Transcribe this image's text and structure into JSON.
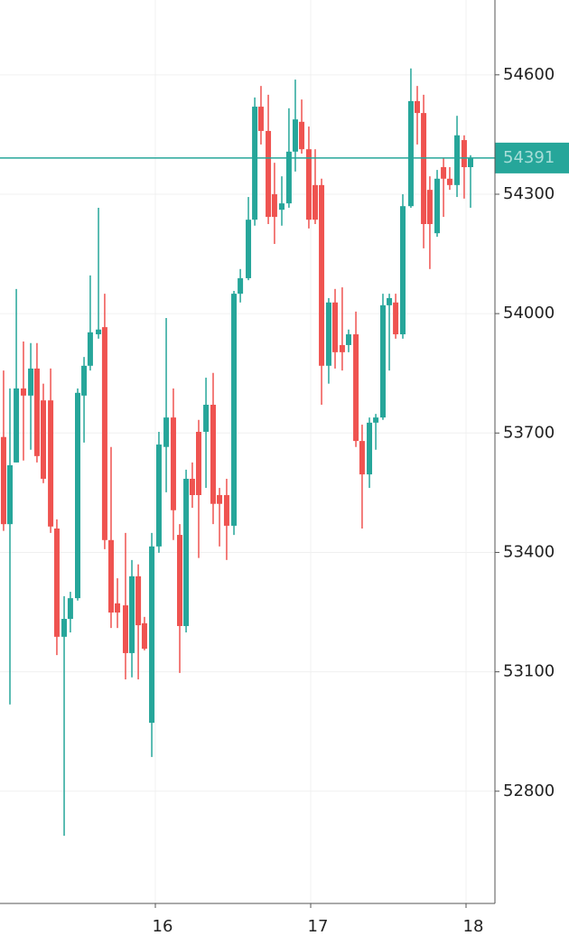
{
  "chart_data": {
    "type": "candlestick",
    "x": [
      15.023,
      15.064,
      15.105,
      15.151,
      15.198,
      15.238,
      15.279,
      15.326,
      15.366,
      15.413,
      15.453,
      15.5,
      15.541,
      15.581,
      15.634,
      15.674,
      15.715,
      15.756,
      15.808,
      15.849,
      15.89,
      15.93,
      15.977,
      16.023,
      16.07,
      16.116,
      16.157,
      16.198,
      16.238,
      16.279,
      16.326,
      16.372,
      16.413,
      16.459,
      16.506,
      16.547,
      16.599,
      16.64,
      16.68,
      16.727,
      16.767,
      16.814,
      16.86,
      16.901,
      16.942,
      16.988,
      17.029,
      17.07,
      17.116,
      17.157,
      17.203,
      17.244,
      17.291,
      17.331,
      17.378,
      17.419,
      17.465,
      17.506,
      17.547,
      17.593,
      17.645,
      17.686,
      17.727,
      17.767,
      17.814,
      17.855,
      17.895,
      17.942,
      17.988,
      18.029
    ],
    "open": [
      53690,
      53471,
      53626,
      53812,
      53794,
      53862,
      53782,
      53782,
      53460,
      53188,
      53233,
      53285,
      53794,
      53869,
      53948,
      53966,
      53431,
      53272,
      53267,
      53147,
      53340,
      53222,
      52972,
      53415,
      53665,
      53739,
      53444,
      53215,
      53585,
      53703,
      53703,
      53771,
      53544,
      53544,
      53467,
      54050,
      54089,
      54236,
      54520,
      54459,
      54300,
      54261,
      54277,
      54407,
      54482,
      54413,
      54323,
      54323,
      53869,
      54028,
      53921,
      53921,
      53948,
      53680,
      53596,
      53726,
      53739,
      54021,
      54028,
      53948,
      54270,
      54534,
      54504,
      54311,
      54202,
      54368,
      54339,
      54323,
      54436,
      54368
    ],
    "high": [
      53857,
      53812,
      54062,
      53930,
      53926,
      53926,
      53824,
      53862,
      53483,
      53290,
      53301,
      53812,
      53891,
      54096,
      54266,
      54050,
      53665,
      53335,
      53449,
      53381,
      53370,
      53238,
      53449,
      53703,
      53989,
      53812,
      53471,
      53608,
      53626,
      53733,
      53839,
      53851,
      53562,
      53585,
      54057,
      54112,
      54293,
      54543,
      54572,
      54550,
      54379,
      54345,
      54516,
      54588,
      54538,
      54470,
      54413,
      54339,
      54039,
      54062,
      54066,
      53960,
      54005,
      53721,
      53739,
      53748,
      54050,
      54050,
      54050,
      54300,
      54616,
      54572,
      54550,
      54345,
      54361,
      54391,
      54368,
      54497,
      54448,
      54398
    ],
    "low": [
      53454,
      53018,
      53626,
      53631,
      53658,
      53626,
      53574,
      53449,
      53142,
      52688,
      53199,
      53279,
      53676,
      53857,
      53937,
      53408,
      53210,
      53210,
      53081,
      53086,
      53081,
      53154,
      52886,
      53399,
      53551,
      53431,
      53097,
      53199,
      53512,
      53386,
      53562,
      53471,
      53415,
      53381,
      53444,
      54028,
      54084,
      54221,
      54425,
      54225,
      54175,
      54221,
      54266,
      54357,
      54402,
      54214,
      54225,
      53771,
      53824,
      53862,
      53857,
      53903,
      53665,
      53460,
      53562,
      53658,
      53733,
      53857,
      53937,
      53937,
      54266,
      54425,
      54164,
      54112,
      54193,
      54243,
      54311,
      54293,
      54289,
      54266
    ],
    "close": [
      53471,
      53619,
      53812,
      53794,
      53862,
      53642,
      53585,
      53465,
      53188,
      53233,
      53285,
      53801,
      53869,
      53953,
      53960,
      53431,
      53249,
      53249,
      53147,
      53340,
      53217,
      53158,
      53415,
      53671,
      53739,
      53506,
      53215,
      53585,
      53544,
      53544,
      53771,
      53522,
      53522,
      53467,
      54050,
      54089,
      54236,
      54520,
      54459,
      54243,
      54243,
      54277,
      54407,
      54488,
      54413,
      54236,
      54236,
      53869,
      54028,
      53903,
      53903,
      53948,
      53680,
      53596,
      53726,
      53739,
      54021,
      54039,
      53948,
      54270,
      54534,
      54504,
      54225,
      54225,
      54339,
      54339,
      54323,
      54448,
      54368,
      54391
    ],
    "up_color": "#26a69a",
    "down_color": "#ef5350",
    "last_price": 54391,
    "last_price_color": "#26a69a",
    "xlim": [
      15,
      18.186
    ],
    "xticks": [
      16,
      17,
      18
    ],
    "ylim": [
      52518,
      54788
    ],
    "yticks": [
      52800,
      53100,
      53400,
      53700,
      54000,
      54300,
      54600
    ],
    "grid": true
  }
}
